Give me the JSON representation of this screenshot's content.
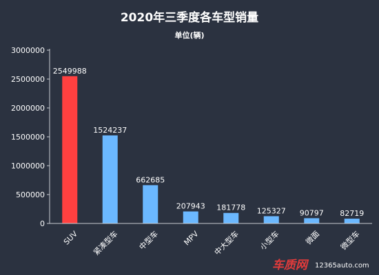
{
  "chart_data": {
    "type": "bar",
    "title": "2020年三季度各车型销量",
    "subtitle": "单位(辆)",
    "categories": [
      "SUV",
      "紧凑型车",
      "中型车",
      "MPV",
      "中大型车",
      "小型车",
      "微面",
      "微型车"
    ],
    "values": [
      2549988,
      1524237,
      662685,
      207943,
      181778,
      125327,
      90797,
      82719
    ],
    "value_labels": [
      "2549988",
      "1524237",
      "662685",
      "207943",
      "181778",
      "125327",
      "90797",
      "82719"
    ],
    "y_ticks": [
      0,
      500000,
      1000000,
      1500000,
      2000000,
      2500000,
      3000000
    ],
    "y_tick_labels": [
      "0",
      "500000",
      "1000000",
      "1500000",
      "2000000",
      "2500000",
      "3000000"
    ],
    "ylim": [
      0,
      3000000
    ],
    "grid": false,
    "legend": "none",
    "colors": {
      "background": "#2b3240",
      "highlight_bar": "#ff4040",
      "bar": "#6bb8ff",
      "axis": "#c8ccd2",
      "text": "#ffffff"
    },
    "highlight_index": 0
  },
  "watermark": {
    "brand": "车质网",
    "site": "12365auto.com"
  }
}
